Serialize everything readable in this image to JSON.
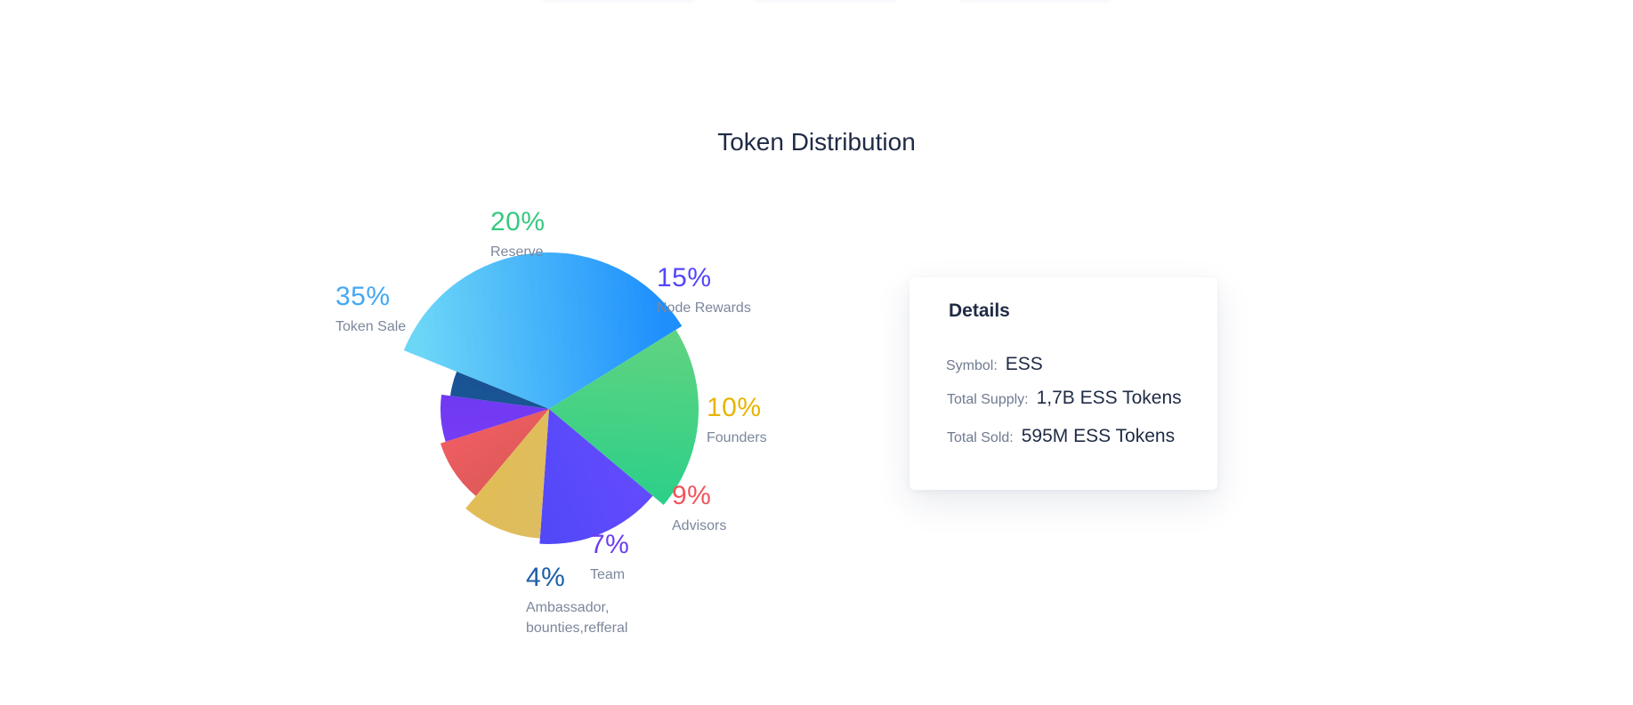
{
  "page": {
    "title": "Token Distribution"
  },
  "chart_data": {
    "type": "pie",
    "title": "Token Distribution",
    "slices": [
      {
        "label": "Token Sale",
        "value": 35,
        "pct_text": "35%",
        "color": "#3aa0f5",
        "color_light": "#6cd6f7",
        "color_dark": "#1e8ffd"
      },
      {
        "label": "Reserve",
        "value": 20,
        "pct_text": "20%",
        "color": "#3acb82",
        "color_light": "#6ad47f",
        "color_dark": "#22cf8a"
      },
      {
        "label": "Node Rewards",
        "value": 15,
        "pct_text": "15%",
        "color": "#5446fb",
        "color_light": "#6a4cff",
        "color_dark": "#4a47f6"
      },
      {
        "label": "Founders",
        "value": 10,
        "pct_text": "10%",
        "color": "#e8b400",
        "color_light": "#d9bd6a",
        "color_dark": "#e6bd4c"
      },
      {
        "label": "Advisors",
        "value": 9,
        "pct_text": "9%",
        "color": "#f25a5e",
        "color_light": "#cf5a50",
        "color_dark": "#ff5d6a"
      },
      {
        "label": "Team",
        "value": 7,
        "pct_text": "7%",
        "color": "#6e3cf0",
        "color_light": "#7a42f6",
        "color_dark": "#6a33f0"
      },
      {
        "label": "Ambassador,\nbounties,refferal",
        "value": 4,
        "pct_text": "4%",
        "color": "#1b5ea8",
        "color_light": "#1c5a9c",
        "color_dark": "#164d8c"
      }
    ]
  },
  "details": {
    "title": "Details",
    "rows": [
      {
        "key": "Symbol:",
        "value": "ESS"
      },
      {
        "key": "Total Supply:",
        "value": "1,7B ESS Tokens"
      },
      {
        "key": "Total Sold:",
        "value": "595M ESS Tokens"
      }
    ]
  }
}
